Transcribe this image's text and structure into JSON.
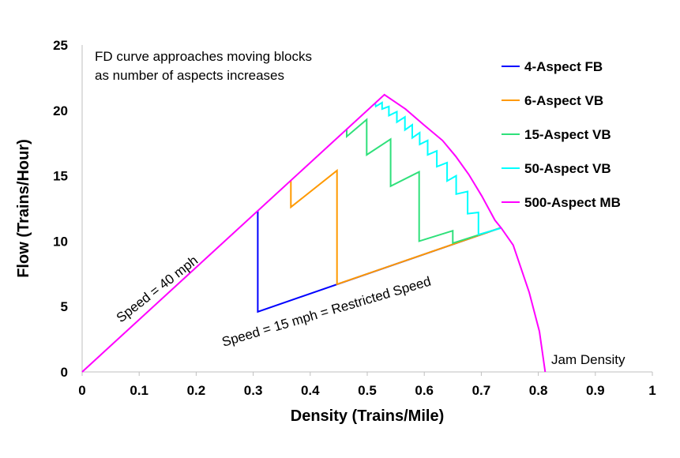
{
  "chart_data": {
    "type": "line",
    "xlabel": "Density (Trains/Mile)",
    "ylabel": "Flow (Trains/Hour)",
    "xlim": [
      0,
      1
    ],
    "ylim": [
      0,
      25
    ],
    "xticks": [
      "0",
      "0.1",
      "0.2",
      "0.3",
      "0.4",
      "0.5",
      "0.6",
      "0.7",
      "0.8",
      "0.9",
      "1"
    ],
    "yticks": [
      "0",
      "5",
      "10",
      "15",
      "20",
      "25"
    ],
    "grid": false,
    "legend": "right",
    "series": [
      {
        "name": "4-Aspect FB",
        "color": "#0000FF",
        "points": [
          [
            0.308,
            12.3
          ],
          [
            0.308,
            4.6
          ],
          [
            0.733,
            11.0
          ]
        ]
      },
      {
        "name": "6-Aspect VB",
        "color": "#FF9900",
        "points": [
          [
            0.366,
            14.6
          ],
          [
            0.366,
            12.6
          ],
          [
            0.447,
            15.4
          ],
          [
            0.447,
            6.7
          ],
          [
            0.733,
            11.0
          ]
        ]
      },
      {
        "name": "15-Aspect VB",
        "color": "#2EE07A",
        "points": [
          [
            0.464,
            18.6
          ],
          [
            0.464,
            18.0
          ],
          [
            0.499,
            19.3
          ],
          [
            0.499,
            16.6
          ],
          [
            0.541,
            17.8
          ],
          [
            0.541,
            14.2
          ],
          [
            0.591,
            15.3
          ],
          [
            0.591,
            10.0
          ],
          [
            0.65,
            10.8
          ],
          [
            0.65,
            9.85
          ],
          [
            0.733,
            11.0
          ]
        ]
      },
      {
        "name": "50-Aspect VB",
        "color": "#00FFFF",
        "points": [
          [
            0.514,
            20.55
          ],
          [
            0.515,
            20.3
          ],
          [
            0.526,
            20.6
          ],
          [
            0.526,
            20.1
          ],
          [
            0.538,
            20.3
          ],
          [
            0.538,
            19.6
          ],
          [
            0.552,
            19.9
          ],
          [
            0.552,
            19.1
          ],
          [
            0.566,
            19.5
          ],
          [
            0.566,
            18.5
          ],
          [
            0.579,
            18.9
          ],
          [
            0.579,
            17.9
          ],
          [
            0.592,
            18.3
          ],
          [
            0.592,
            17.4
          ],
          [
            0.606,
            17.7
          ],
          [
            0.606,
            16.6
          ],
          [
            0.622,
            16.9
          ],
          [
            0.622,
            15.7
          ],
          [
            0.64,
            16.0
          ],
          [
            0.64,
            14.6
          ],
          [
            0.656,
            15.0
          ],
          [
            0.656,
            13.6
          ],
          [
            0.676,
            13.8
          ],
          [
            0.676,
            12.1
          ],
          [
            0.695,
            12.2
          ],
          [
            0.695,
            10.5
          ],
          [
            0.735,
            11.0
          ]
        ]
      },
      {
        "name": "500-Aspect MB",
        "color": "#FF00FF",
        "points": [
          [
            0,
            0
          ],
          [
            0.53,
            21.2
          ],
          [
            0.567,
            20.1
          ],
          [
            0.599,
            18.9
          ],
          [
            0.632,
            17.7
          ],
          [
            0.655,
            16.5
          ],
          [
            0.678,
            15.1
          ],
          [
            0.701,
            13.45
          ],
          [
            0.724,
            11.6
          ],
          [
            0.735,
            11.0
          ],
          [
            0.756,
            9.7
          ],
          [
            0.784,
            6.1
          ],
          [
            0.802,
            3.1
          ],
          [
            0.812,
            0
          ]
        ]
      }
    ],
    "baseline": {
      "color": "#0000FF",
      "points": [
        [
          0,
          0
        ],
        [
          0.308,
          12.3
        ]
      ]
    },
    "annotations": {
      "note_line1": "FD curve approaches moving blocks",
      "note_line2": "as number of aspects increases",
      "speed40": "Speed = 40 mph",
      "speed15": "Speed = 15 mph = Restricted Speed",
      "jam": "Jam Density"
    }
  }
}
